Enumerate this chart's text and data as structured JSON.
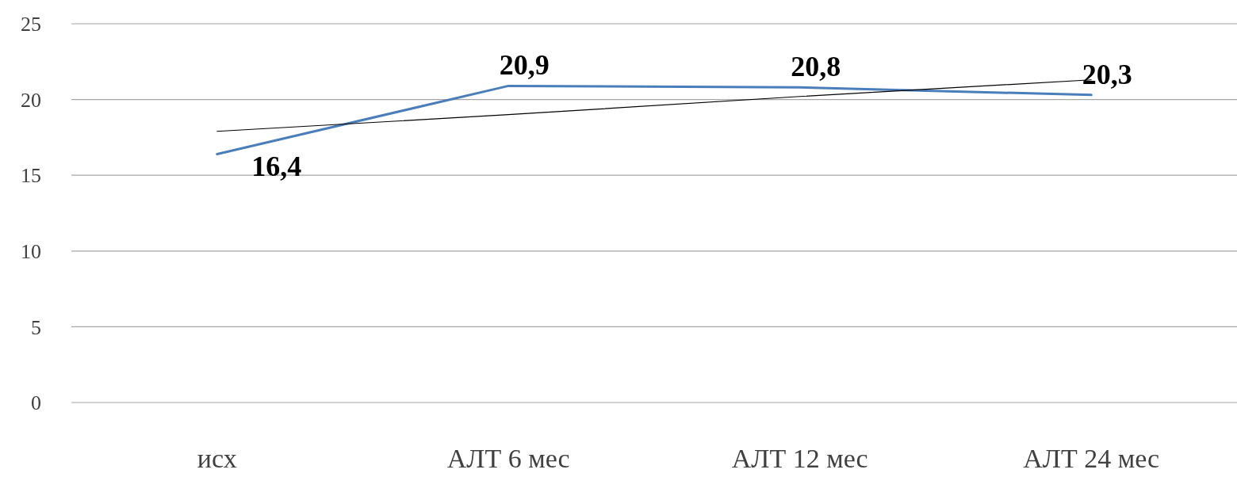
{
  "chart_data": {
    "type": "line",
    "categories": [
      "исх",
      "АЛТ 6 мес",
      "АЛТ 12 мес",
      "АЛТ 24 мес"
    ],
    "series": [
      {
        "color": "#4a7ebb",
        "values": [
          16.4,
          20.9,
          20.8,
          20.3
        ],
        "value_labels": [
          "16,4",
          "20,9",
          "20,8",
          "20,3"
        ]
      },
      {
        "type": "line",
        "color": "#000000",
        "values": [
          17.9,
          19.0,
          20.2,
          21.3
        ]
      }
    ],
    "ylim": [
      0,
      25
    ],
    "yticks": [
      0,
      5,
      10,
      15,
      20,
      25
    ],
    "grid": "y",
    "marker": "none",
    "line_style": "solid"
  }
}
